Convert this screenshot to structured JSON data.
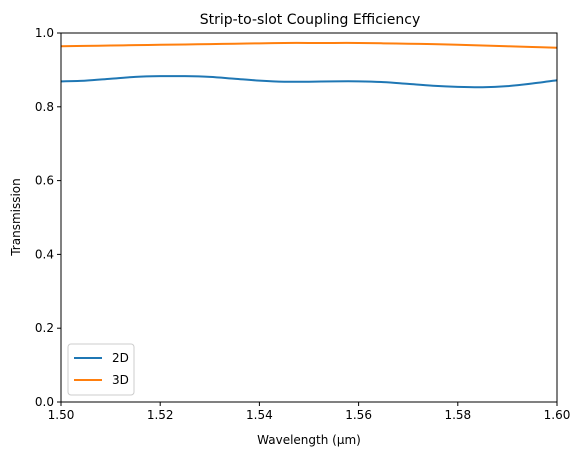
{
  "chart_data": {
    "type": "line",
    "title": "Strip-to-slot Coupling Efficiency",
    "xlabel": "Wavelength (μm)",
    "ylabel": "Transmission",
    "xlim": [
      1.5,
      1.6
    ],
    "ylim": [
      0.0,
      1.0
    ],
    "xticks": [
      1.5,
      1.52,
      1.54,
      1.56,
      1.58,
      1.6
    ],
    "xtick_labels": [
      "1.50",
      "1.52",
      "1.54",
      "1.56",
      "1.58",
      "1.60"
    ],
    "yticks": [
      0.0,
      0.2,
      0.4,
      0.6,
      0.8,
      1.0
    ],
    "ytick_labels": [
      "0.0",
      "0.2",
      "0.4",
      "0.6",
      "0.8",
      "1.0"
    ],
    "grid": false,
    "legend_position": "lower-left",
    "series": [
      {
        "name": "2D",
        "color": "#1f77b4",
        "x": [
          1.5,
          1.505,
          1.51,
          1.515,
          1.52,
          1.525,
          1.53,
          1.535,
          1.54,
          1.545,
          1.55,
          1.555,
          1.56,
          1.565,
          1.57,
          1.575,
          1.58,
          1.585,
          1.59,
          1.595,
          1.6
        ],
        "y": [
          0.869,
          0.871,
          0.876,
          0.881,
          0.883,
          0.883,
          0.881,
          0.876,
          0.871,
          0.868,
          0.868,
          0.869,
          0.869,
          0.867,
          0.862,
          0.857,
          0.854,
          0.853,
          0.856,
          0.863,
          0.872
        ]
      },
      {
        "name": "3D",
        "color": "#ff7f0e",
        "x": [
          1.5,
          1.505,
          1.51,
          1.515,
          1.52,
          1.525,
          1.53,
          1.535,
          1.54,
          1.545,
          1.55,
          1.555,
          1.56,
          1.565,
          1.57,
          1.575,
          1.58,
          1.585,
          1.59,
          1.595,
          1.6
        ],
        "y": [
          0.964,
          0.965,
          0.966,
          0.967,
          0.968,
          0.969,
          0.97,
          0.971,
          0.972,
          0.973,
          0.973,
          0.973,
          0.973,
          0.972,
          0.971,
          0.97,
          0.968,
          0.966,
          0.964,
          0.962,
          0.96
        ]
      }
    ]
  }
}
